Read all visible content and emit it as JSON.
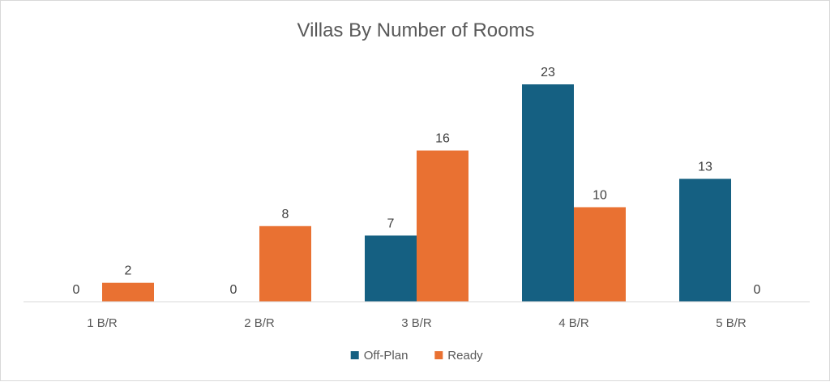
{
  "chart_data": {
    "type": "bar",
    "title": "Villas By Number of Rooms",
    "categories": [
      "1 B/R",
      "2 B/R",
      "3 B/R",
      "4 B/R",
      "5 B/R"
    ],
    "series": [
      {
        "name": "Off-Plan",
        "values": [
          0,
          0,
          7,
          23,
          13
        ],
        "color": "#156082"
      },
      {
        "name": "Ready",
        "values": [
          2,
          8,
          16,
          10,
          0
        ],
        "color": "#E97132"
      }
    ],
    "xlabel": "",
    "ylabel": "",
    "ylim": [
      0,
      23
    ],
    "grid": false,
    "legend": "bottom",
    "data_labels": true
  }
}
